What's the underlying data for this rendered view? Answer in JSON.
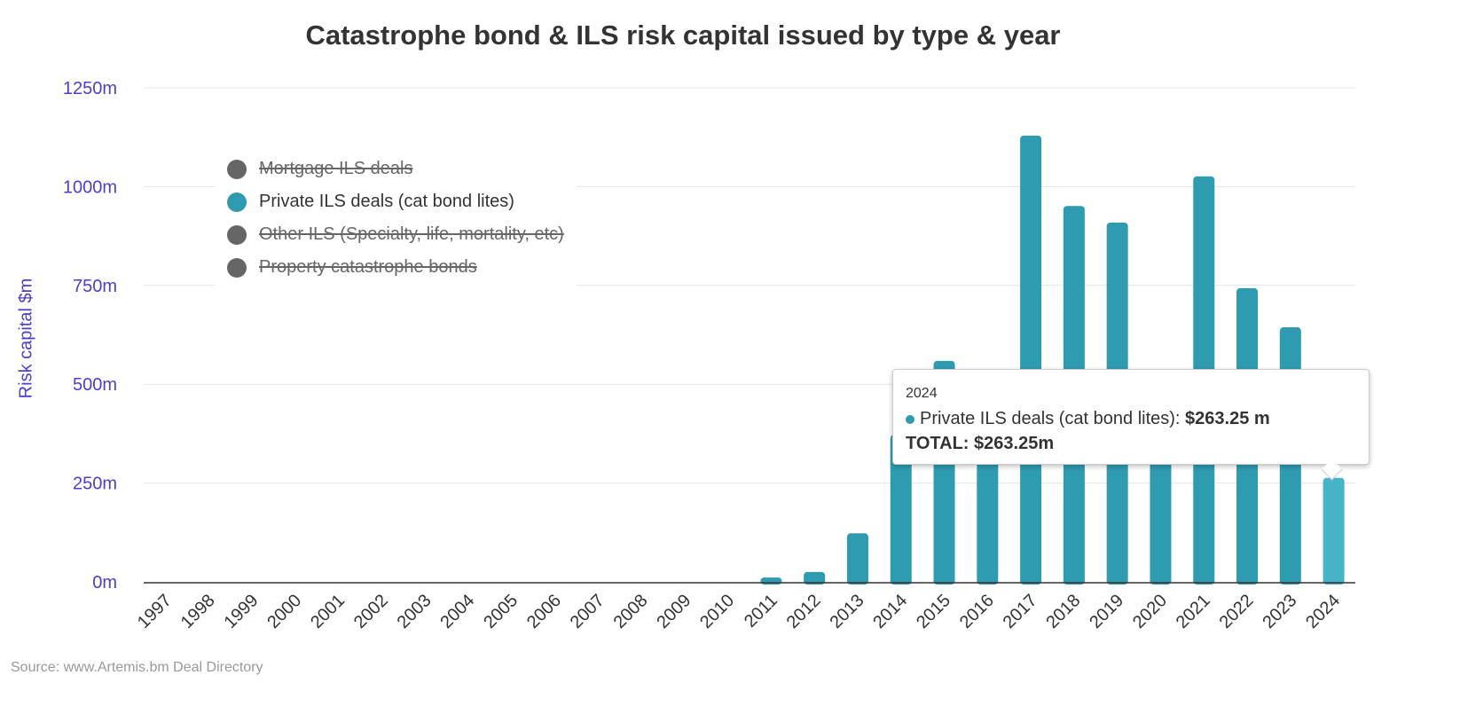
{
  "chart_data": {
    "type": "bar",
    "title": "Catastrophe bond & ILS risk capital issued by type & year",
    "ylabel": "Risk capital $m",
    "xlabel": "",
    "ylim": [
      0,
      1250
    ],
    "yticks": [
      "0m",
      "250m",
      "500m",
      "750m",
      "1000m",
      "1250m"
    ],
    "ytick_values": [
      0,
      250,
      500,
      750,
      1000,
      1250
    ],
    "grid": true,
    "legend_placement": "top-left",
    "categories": [
      "1997",
      "1998",
      "1999",
      "2000",
      "2001",
      "2002",
      "2003",
      "2004",
      "2005",
      "2006",
      "2007",
      "2008",
      "2009",
      "2010",
      "2011",
      "2012",
      "2013",
      "2014",
      "2015",
      "2016",
      "2017",
      "2018",
      "2019",
      "2020",
      "2021",
      "2022",
      "2023",
      "2024"
    ],
    "series": [
      {
        "name": "Mortgage ILS deals",
        "visible": false,
        "color": "#666666"
      },
      {
        "name": "Private ILS deals (cat bond lites)",
        "visible": true,
        "color": "#2e9bb0",
        "values": [
          0,
          0,
          0,
          0,
          0,
          0,
          0,
          0,
          0,
          0,
          0,
          0,
          0,
          0,
          11,
          25,
          123,
          372,
          559,
          450,
          1129,
          951,
          909,
          460,
          1026,
          743,
          644,
          263.25
        ]
      },
      {
        "name": "Other ILS (Specialty, life, mortality, etc)",
        "visible": false,
        "color": "#666666"
      },
      {
        "name": "Property catastrophe bonds",
        "visible": false,
        "color": "#666666"
      }
    ],
    "highlight_color": "#45b3c8",
    "source": "Source: www.Artemis.bm Deal Directory"
  },
  "tooltip": {
    "year": "2024",
    "series": "Private ILS deals (cat bond lites): ",
    "value": "$263.25 m",
    "total": "TOTAL: $263.25m"
  }
}
